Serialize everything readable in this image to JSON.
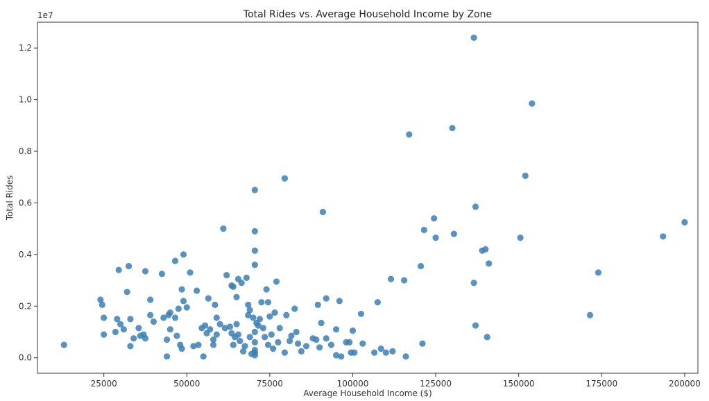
{
  "chart_data": {
    "type": "scatter",
    "title": "Total Rides vs. Average Household Income by Zone",
    "xlabel": "Average Household Income ($)",
    "ylabel": "Total Rides",
    "y_offset_label": "1e7",
    "xlim": [
      5000,
      204000
    ],
    "ylim": [
      -0.06,
      1.3
    ],
    "x_ticks": [
      25000,
      50000,
      75000,
      100000,
      125000,
      150000,
      175000,
      200000
    ],
    "x_tick_labels": [
      "25000",
      "50000",
      "75000",
      "100000",
      "125000",
      "150000",
      "175000",
      "200000"
    ],
    "y_ticks": [
      0.0,
      0.2,
      0.4,
      0.6,
      0.8,
      1.0,
      1.2
    ],
    "y_tick_labels": [
      "0.0",
      "0.2",
      "0.4",
      "0.6",
      "0.8",
      "1.0",
      "1.2"
    ],
    "grid": false,
    "marker_color": "#3b7fb5",
    "series": [
      {
        "points": [
          [
            13000,
            0.05
          ],
          [
            24000,
            0.225
          ],
          [
            24500,
            0.205
          ],
          [
            25000,
            0.09
          ],
          [
            25000,
            0.155
          ],
          [
            28500,
            0.1
          ],
          [
            29000,
            0.15
          ],
          [
            29500,
            0.34
          ],
          [
            30000,
            0.13
          ],
          [
            31000,
            0.11
          ],
          [
            32000,
            0.255
          ],
          [
            32500,
            0.355
          ],
          [
            33000,
            0.045
          ],
          [
            33000,
            0.15
          ],
          [
            34000,
            0.075
          ],
          [
            35500,
            0.115
          ],
          [
            36000,
            0.085
          ],
          [
            37000,
            0.09
          ],
          [
            37500,
            0.335
          ],
          [
            37500,
            0.075
          ],
          [
            39000,
            0.225
          ],
          [
            39000,
            0.165
          ],
          [
            40000,
            0.14
          ],
          [
            42500,
            0.325
          ],
          [
            43000,
            0.155
          ],
          [
            44000,
            0.07
          ],
          [
            44000,
            0.005
          ],
          [
            44500,
            0.165
          ],
          [
            45000,
            0.175
          ],
          [
            45000,
            0.11
          ],
          [
            46500,
            0.375
          ],
          [
            46500,
            0.155
          ],
          [
            47000,
            0.085
          ],
          [
            47500,
            0.19
          ],
          [
            48000,
            0.05
          ],
          [
            48500,
            0.265
          ],
          [
            48500,
            0.035
          ],
          [
            49000,
            0.22
          ],
          [
            49000,
            0.4
          ],
          [
            50000,
            0.195
          ],
          [
            51000,
            0.33
          ],
          [
            52000,
            0.045
          ],
          [
            53000,
            0.26
          ],
          [
            53500,
            0.05
          ],
          [
            54500,
            0.115
          ],
          [
            55000,
            0.005
          ],
          [
            55500,
            0.125
          ],
          [
            56000,
            0.095
          ],
          [
            56500,
            0.23
          ],
          [
            57000,
            0.11
          ],
          [
            58000,
            0.07
          ],
          [
            58000,
            0.05
          ],
          [
            58500,
            0.205
          ],
          [
            59000,
            0.09
          ],
          [
            59000,
            0.155
          ],
          [
            60000,
            0.13
          ],
          [
            61000,
            0.5
          ],
          [
            61500,
            0.115
          ],
          [
            62000,
            0.32
          ],
          [
            63000,
            0.12
          ],
          [
            63500,
            0.28
          ],
          [
            63500,
            0.095
          ],
          [
            64000,
            0.275
          ],
          [
            64000,
            0.05
          ],
          [
            64500,
            0.08
          ],
          [
            65000,
            0.235
          ],
          [
            65000,
            0.13
          ],
          [
            65500,
            0.305
          ],
          [
            65500,
            0.09
          ],
          [
            66000,
            0.065
          ],
          [
            66500,
            0.29
          ],
          [
            67000,
            0.025
          ],
          [
            67500,
            0.045
          ],
          [
            68000,
            0.31
          ],
          [
            68500,
            0.205
          ],
          [
            68500,
            0.165
          ],
          [
            69000,
            0.08
          ],
          [
            69000,
            0.185
          ],
          [
            69500,
            0.015
          ],
          [
            70000,
            0.155
          ],
          [
            70500,
            0.1
          ],
          [
            70500,
            0.36
          ],
          [
            70500,
            0.415
          ],
          [
            70500,
            0.49
          ],
          [
            70500,
            0.65
          ],
          [
            70500,
            0.01
          ],
          [
            70500,
            0.02
          ],
          [
            70500,
            0.03
          ],
          [
            70500,
            0.06
          ],
          [
            71000,
            0.135
          ],
          [
            71500,
            0.125
          ],
          [
            72000,
            0.15
          ],
          [
            72500,
            0.215
          ],
          [
            73000,
            0.115
          ],
          [
            73500,
            0.08
          ],
          [
            74000,
            0.265
          ],
          [
            74500,
            0.215
          ],
          [
            74500,
            0.05
          ],
          [
            75000,
            0.16
          ],
          [
            75500,
            0.09
          ],
          [
            76000,
            0.035
          ],
          [
            76500,
            0.175
          ],
          [
            77000,
            0.295
          ],
          [
            77500,
            0.06
          ],
          [
            78000,
            0.115
          ],
          [
            79500,
            0.695
          ],
          [
            79500,
            0.02
          ],
          [
            80000,
            0.165
          ],
          [
            81000,
            0.065
          ],
          [
            81500,
            0.085
          ],
          [
            82500,
            0.19
          ],
          [
            83000,
            0.1
          ],
          [
            83500,
            0.055
          ],
          [
            84500,
            0.025
          ],
          [
            86000,
            0.045
          ],
          [
            88000,
            0.075
          ],
          [
            89000,
            0.07
          ],
          [
            89500,
            0.205
          ],
          [
            90000,
            0.04
          ],
          [
            90500,
            0.135
          ],
          [
            91000,
            0.565
          ],
          [
            92000,
            0.075
          ],
          [
            92000,
            0.23
          ],
          [
            93500,
            0.05
          ],
          [
            95000,
            0.01
          ],
          [
            95000,
            0.11
          ],
          [
            96000,
            0.22
          ],
          [
            96500,
            0.005
          ],
          [
            98000,
            0.06
          ],
          [
            99000,
            0.06
          ],
          [
            99500,
            0.02
          ],
          [
            100000,
            0.105
          ],
          [
            100500,
            0.02
          ],
          [
            102500,
            0.17
          ],
          [
            103000,
            0.055
          ],
          [
            106500,
            0.02
          ],
          [
            107500,
            0.215
          ],
          [
            108500,
            0.035
          ],
          [
            110000,
            0.02
          ],
          [
            111500,
            0.305
          ],
          [
            112000,
            0.025
          ],
          [
            115500,
            0.3
          ],
          [
            116000,
            0.005
          ],
          [
            117000,
            0.865
          ],
          [
            120500,
            0.355
          ],
          [
            121000,
            0.055
          ],
          [
            121500,
            0.495
          ],
          [
            124500,
            0.54
          ],
          [
            125000,
            0.465
          ],
          [
            130000,
            0.89
          ],
          [
            130500,
            0.48
          ],
          [
            136500,
            1.24
          ],
          [
            136500,
            0.29
          ],
          [
            137000,
            0.125
          ],
          [
            137000,
            0.585
          ],
          [
            139000,
            0.415
          ],
          [
            140000,
            0.42
          ],
          [
            140500,
            0.08
          ],
          [
            141000,
            0.365
          ],
          [
            150500,
            0.465
          ],
          [
            152000,
            0.705
          ],
          [
            154000,
            0.985
          ],
          [
            171500,
            0.165
          ],
          [
            174000,
            0.33
          ],
          [
            193500,
            0.47
          ],
          [
            200000,
            0.525
          ]
        ]
      }
    ]
  }
}
